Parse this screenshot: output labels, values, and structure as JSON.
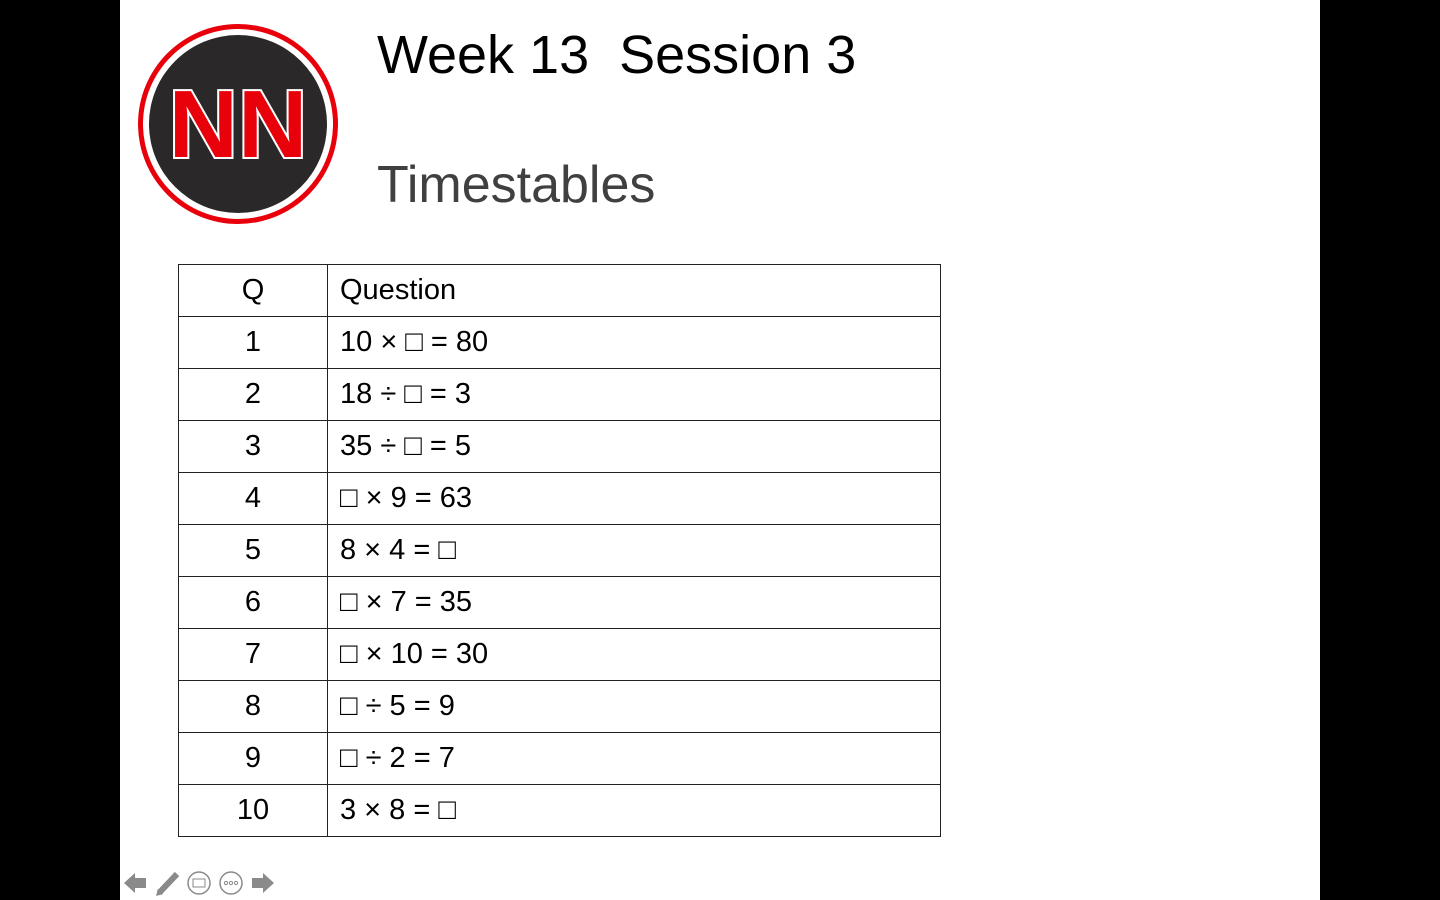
{
  "slide": {
    "title": "Week 13  Session 3",
    "subtitle": "Timestables",
    "logo_text": "NN",
    "table": {
      "headers": [
        "Q",
        "Question"
      ],
      "rows": [
        [
          "1",
          "10 × □ = 80"
        ],
        [
          "2",
          "18 ÷ □ = 3"
        ],
        [
          "3",
          "35 ÷ □ = 5"
        ],
        [
          "4",
          "□ × 9 = 63"
        ],
        [
          "5",
          "8 × 4 = □"
        ],
        [
          "6",
          "□ × 7 = 35"
        ],
        [
          "7",
          "□ × 10 = 30"
        ],
        [
          "8",
          "□ ÷ 5 = 9"
        ],
        [
          "9",
          "□ ÷ 2 = 7"
        ],
        [
          "10",
          "3 × 8 = □"
        ]
      ]
    }
  },
  "controls": [
    "previous-slide",
    "pen",
    "subtitles",
    "more-options",
    "next-slide"
  ],
  "colors": {
    "logo_red": "#e8000b",
    "logo_dark": "#2a2828",
    "subtitle": "#404040",
    "controls": "#8a8a8a"
  }
}
